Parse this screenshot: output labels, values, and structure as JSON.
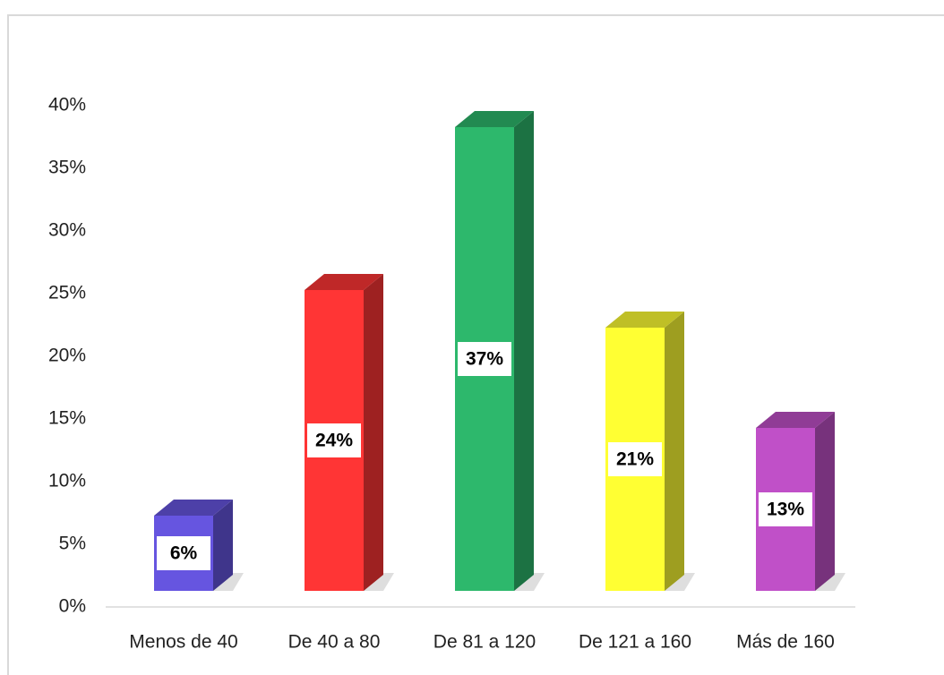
{
  "chart_data": {
    "type": "bar3d",
    "categories": [
      "Menos de 40",
      "De 40 a 80",
      "De 81 a 120",
      "De 121 a 160",
      "Más de 160"
    ],
    "values": [
      6,
      24,
      37,
      21,
      13
    ],
    "value_labels": [
      "6%",
      "24%",
      "37%",
      "21%",
      "13%"
    ],
    "colors": [
      "#6655e0",
      "#ff3535",
      "#2db86c",
      "#ffff33",
      "#c050c8"
    ],
    "ylim": [
      0,
      40
    ],
    "yticks": [
      {
        "value": 0,
        "label": "0%"
      },
      {
        "value": 5,
        "label": "5%"
      },
      {
        "value": 10,
        "label": "10%"
      },
      {
        "value": 15,
        "label": "15%"
      },
      {
        "value": 20,
        "label": "20%"
      },
      {
        "value": 25,
        "label": "25%"
      },
      {
        "value": 30,
        "label": "30%"
      },
      {
        "value": 35,
        "label": "35%"
      },
      {
        "value": 40,
        "label": "40%"
      }
    ],
    "grid": false
  }
}
